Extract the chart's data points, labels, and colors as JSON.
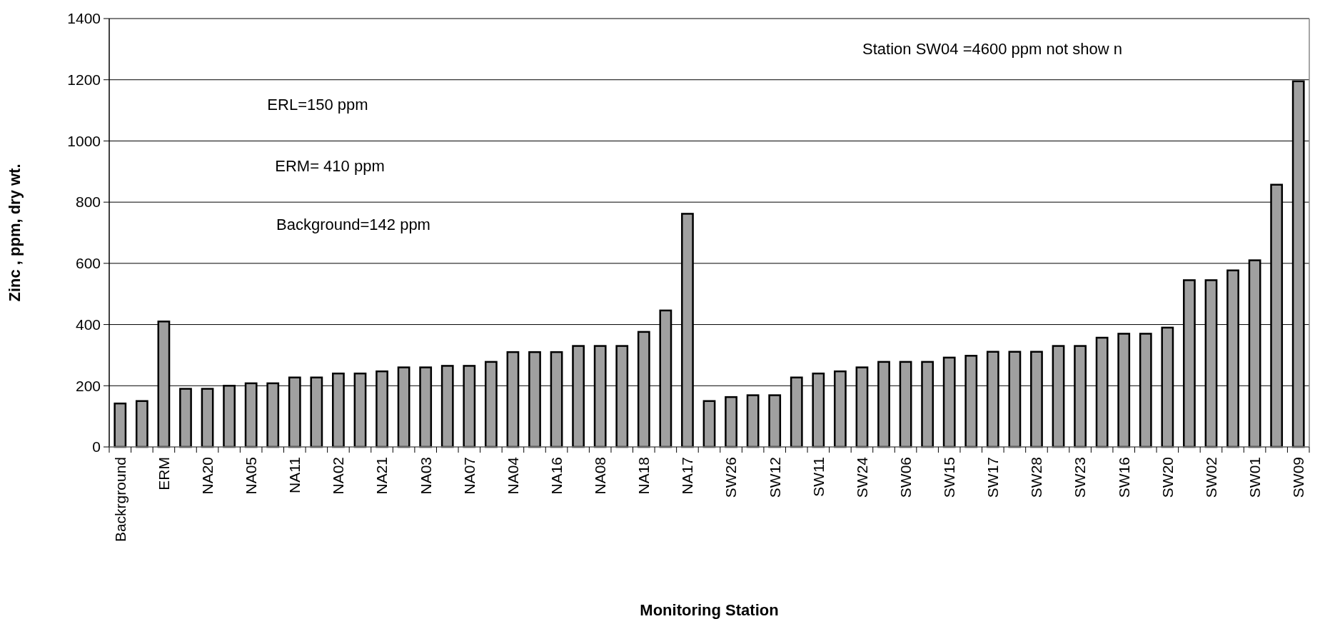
{
  "chart_data": {
    "type": "bar",
    "xlabel": "Monitoring Station",
    "ylabel": "Zinc , ppm, dry wt.",
    "categories": [
      "Backrground",
      null,
      "ERM",
      null,
      "NA20",
      null,
      "NA05",
      null,
      "NA11",
      null,
      "NA02",
      null,
      "NA21",
      null,
      "NA03",
      null,
      "NA07",
      null,
      "NA04",
      null,
      "NA16",
      null,
      "NA08",
      null,
      "NA18",
      null,
      "NA17",
      null,
      "SW26",
      null,
      "SW12",
      null,
      "SW11",
      null,
      "SW24",
      null,
      "SW06",
      null,
      "SW15",
      null,
      "SW17",
      null,
      "SW28",
      null,
      "SW23",
      null,
      "SW16",
      null,
      "SW20",
      null,
      "SW02",
      null,
      "SW01",
      null,
      "SW09"
    ],
    "values": [
      142,
      150,
      410,
      190,
      190,
      200,
      208,
      208,
      227,
      227,
      240,
      240,
      247,
      260,
      260,
      265,
      265,
      278,
      310,
      310,
      310,
      330,
      330,
      330,
      376,
      446,
      762,
      150,
      163,
      169,
      169,
      227,
      240,
      247,
      260,
      278,
      278,
      278,
      292,
      298,
      311,
      311,
      311,
      330,
      330,
      357,
      370,
      370,
      390,
      545,
      545,
      577,
      610,
      857,
      1195
    ],
    "color": "#a0a0a0",
    "ylim": [
      0,
      1400
    ],
    "yticks": [
      0,
      200,
      400,
      600,
      800,
      1000,
      1200,
      1400
    ],
    "grid": "y",
    "annotations": [
      "Station SW04 =4600 ppm not show n",
      "ERL=150 ppm",
      "ERM= 410 ppm",
      "Background=142 ppm"
    ]
  }
}
